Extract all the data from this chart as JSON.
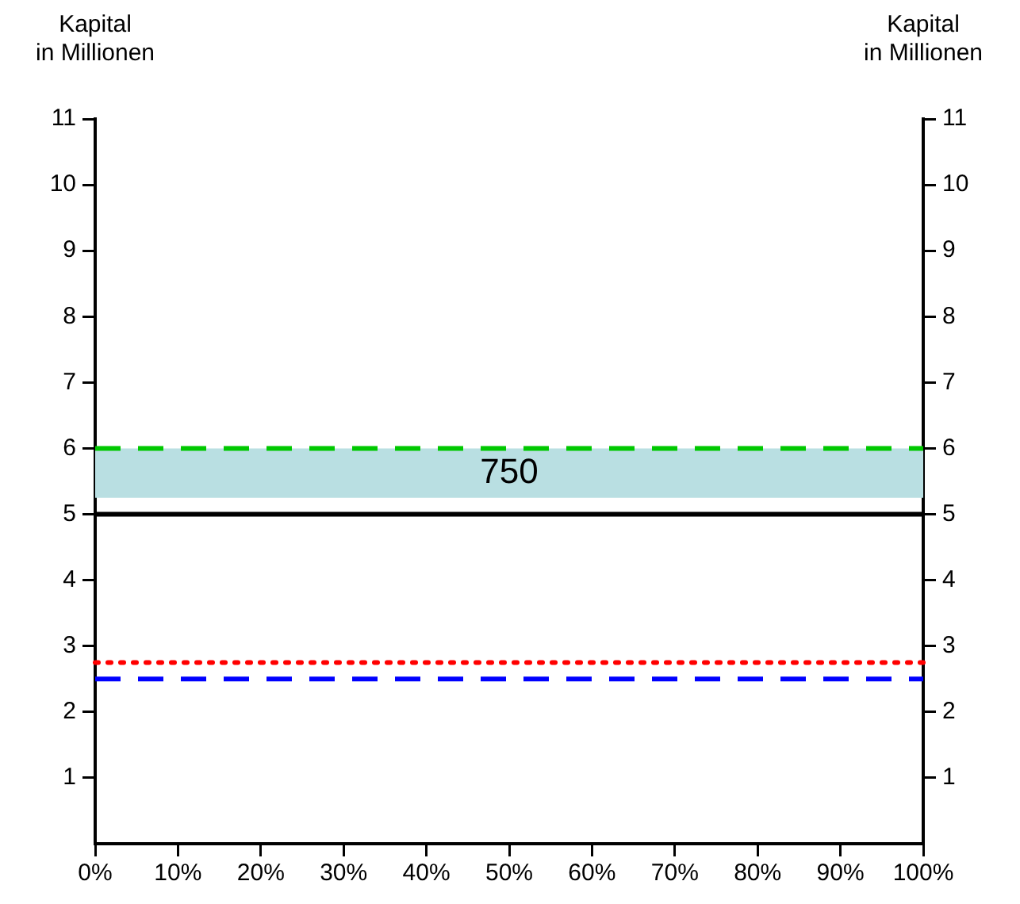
{
  "chart_data": {
    "type": "line",
    "ylabel": "Kapital\nin Millionen",
    "y2label": "Kapital\nin Millionen",
    "xlim": [
      0,
      100
    ],
    "xticks": [
      {
        "value": 0,
        "label": "0%"
      },
      {
        "value": 10,
        "label": "10%"
      },
      {
        "value": 20,
        "label": "20%"
      },
      {
        "value": 30,
        "label": "30%"
      },
      {
        "value": 40,
        "label": "40%"
      },
      {
        "value": 50,
        "label": "50%"
      },
      {
        "value": 60,
        "label": "60%"
      },
      {
        "value": 70,
        "label": "70%"
      },
      {
        "value": 80,
        "label": "80%"
      },
      {
        "value": 90,
        "label": "90%"
      },
      {
        "value": 100,
        "label": "100%"
      }
    ],
    "ylim": [
      0,
      11
    ],
    "yticks": [
      1,
      2,
      3,
      4,
      5,
      6,
      7,
      8,
      9,
      10,
      11
    ],
    "y2lim": [
      0,
      11
    ],
    "y2ticks": [
      1,
      2,
      3,
      4,
      5,
      6,
      7,
      8,
      9,
      10,
      11
    ],
    "ref_lines": [
      {
        "axis": "y",
        "value": 6,
        "color": "#00c800",
        "line_style": "dashed"
      },
      {
        "axis": "y",
        "value": 5,
        "color": "#000000",
        "line_style": "solid"
      },
      {
        "axis": "y",
        "value": 2.75,
        "color": "#ff0000",
        "line_style": "dotted"
      },
      {
        "axis": "y",
        "value": 2.5,
        "color": "#0000ff",
        "line_style": "dashed"
      }
    ],
    "bands": [
      {
        "axis": "y",
        "from": 5.25,
        "to": 6,
        "label": "750",
        "color": "#b9dfe2"
      }
    ],
    "grid": false,
    "legend": false
  }
}
